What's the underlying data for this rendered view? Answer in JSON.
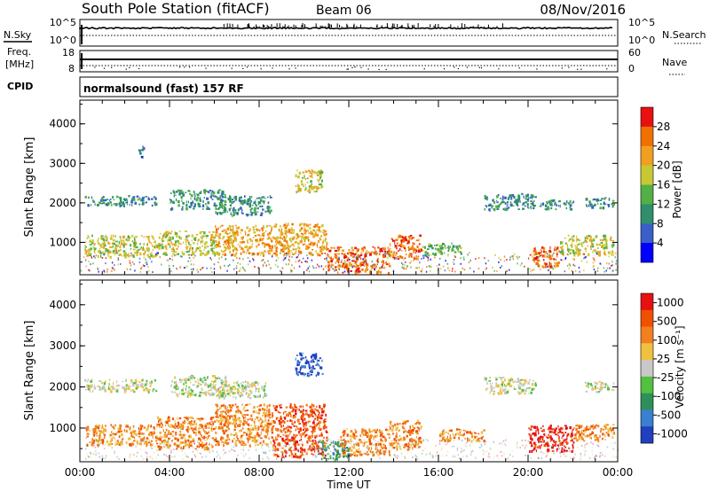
{
  "header": {
    "station_title": "South Pole Station (fitACF)",
    "beam": "Beam 06",
    "date": "08/Nov/2016"
  },
  "strips": {
    "nsky_label": "N.Sky",
    "nsearch_label": "N.Search",
    "freq_label_1": "Freq.",
    "freq_label_2": "[MHz]",
    "nave_label": "Nave",
    "cpid_label": "CPID",
    "nsky_ticks": [
      "10^5",
      "10^0"
    ],
    "nsearch_ticks": [
      "10^5",
      "10^0"
    ],
    "freq_ticks": [
      "18",
      "8"
    ],
    "nave_ticks": [
      "60",
      "0"
    ],
    "cpid_text": "normalsound (fast) 157 RF"
  },
  "chart_data": [
    {
      "type": "heatmap",
      "title": "",
      "ylabel": "Slant Range [km]",
      "xlabel": "",
      "x_range_hours": [
        0,
        24
      ],
      "ylim": [
        180,
        4600
      ],
      "y_ticks": [
        "1000",
        "2000",
        "3000",
        "4000"
      ],
      "colorbar_label": "Power [dB]",
      "colorbar_ticks": [
        "4",
        "8",
        "12",
        "16",
        "20",
        "24",
        "28"
      ],
      "colorbar_colors": [
        "#0000ff",
        "#3a5fc8",
        "#2f8f6a",
        "#52b046",
        "#c8c832",
        "#f0a020",
        "#f07000",
        "#e81010"
      ],
      "echo_regions": [
        {
          "x0": 0.2,
          "x1": 3.4,
          "y0": 1950,
          "y1": 2200,
          "level": 2
        },
        {
          "x0": 2.6,
          "x1": 2.9,
          "y0": 3150,
          "y1": 3450,
          "level": 1
        },
        {
          "x0": 4.0,
          "x1": 6.5,
          "y0": 1850,
          "y1": 2350,
          "level": 2
        },
        {
          "x0": 6.0,
          "x1": 8.5,
          "y0": 1700,
          "y1": 2200,
          "level": 2
        },
        {
          "x0": 9.6,
          "x1": 10.8,
          "y0": 2300,
          "y1": 2850,
          "level": 4
        },
        {
          "x0": 18.0,
          "x1": 20.3,
          "y0": 1850,
          "y1": 2250,
          "level": 2
        },
        {
          "x0": 20.5,
          "x1": 22.0,
          "y0": 1850,
          "y1": 2100,
          "level": 2
        },
        {
          "x0": 22.5,
          "x1": 23.8,
          "y0": 1900,
          "y1": 2150,
          "level": 2
        },
        {
          "x0": 0.2,
          "x1": 3.4,
          "y0": 650,
          "y1": 1200,
          "level": 4
        },
        {
          "x0": 3.4,
          "x1": 6.0,
          "y0": 700,
          "y1": 1300,
          "level": 4
        },
        {
          "x0": 6.0,
          "x1": 8.6,
          "y0": 700,
          "y1": 1450,
          "level": 5
        },
        {
          "x0": 8.6,
          "x1": 11.0,
          "y0": 700,
          "y1": 1500,
          "level": 5
        },
        {
          "x0": 11.0,
          "x1": 13.8,
          "y0": 250,
          "y1": 900,
          "level": 6
        },
        {
          "x0": 13.8,
          "x1": 15.2,
          "y0": 600,
          "y1": 1200,
          "level": 6
        },
        {
          "x0": 15.2,
          "x1": 17.0,
          "y0": 700,
          "y1": 1000,
          "level": 3
        },
        {
          "x0": 20.2,
          "x1": 21.4,
          "y0": 400,
          "y1": 900,
          "level": 6
        },
        {
          "x0": 21.4,
          "x1": 23.8,
          "y0": 700,
          "y1": 1200,
          "level": 4
        }
      ]
    },
    {
      "type": "heatmap",
      "title": "",
      "ylabel": "Slant Range [km]",
      "xlabel": "Time UT",
      "x_range_hours": [
        0,
        24
      ],
      "x_ticks": [
        "00:00",
        "04:00",
        "08:00",
        "12:00",
        "16:00",
        "20:00",
        "00:00"
      ],
      "ylim": [
        180,
        4600
      ],
      "y_ticks": [
        "1000",
        "2000",
        "3000",
        "4000"
      ],
      "colorbar_label": "Velocity [m s⁻¹]",
      "colorbar_ticks": [
        "1000",
        "500",
        "100",
        "25",
        "-25",
        "-100",
        "-500",
        "-1000"
      ],
      "colorbar_colors": [
        "#2040c0",
        "#3a7fd0",
        "#2f8f5a",
        "#52c040",
        "#c8c8c8",
        "#f0c040",
        "#f08020",
        "#f05000",
        "#e81010"
      ],
      "echo_regions": [
        {
          "x0": 0.2,
          "x1": 3.4,
          "y0": 1900,
          "y1": 2200,
          "level": 4
        },
        {
          "x0": 4.0,
          "x1": 6.5,
          "y0": 1800,
          "y1": 2300,
          "level": 4
        },
        {
          "x0": 6.0,
          "x1": 8.3,
          "y0": 1750,
          "y1": 2150,
          "level": 4
        },
        {
          "x0": 9.6,
          "x1": 10.8,
          "y0": 2300,
          "y1": 2850,
          "level": 0
        },
        {
          "x0": 18.0,
          "x1": 20.3,
          "y0": 1850,
          "y1": 2250,
          "level": 4
        },
        {
          "x0": 22.5,
          "x1": 23.8,
          "y0": 1900,
          "y1": 2150,
          "level": 4
        },
        {
          "x0": 0.2,
          "x1": 3.4,
          "y0": 600,
          "y1": 1100,
          "level": 6
        },
        {
          "x0": 3.4,
          "x1": 6.0,
          "y0": 500,
          "y1": 1300,
          "level": 6
        },
        {
          "x0": 6.0,
          "x1": 8.6,
          "y0": 600,
          "y1": 1600,
          "level": 6
        },
        {
          "x0": 8.6,
          "x1": 11.0,
          "y0": 300,
          "y1": 1600,
          "level": 7
        },
        {
          "x0": 10.6,
          "x1": 12.0,
          "y0": 250,
          "y1": 700,
          "level": 2
        },
        {
          "x0": 11.6,
          "x1": 13.8,
          "y0": 350,
          "y1": 1000,
          "level": 6
        },
        {
          "x0": 13.8,
          "x1": 15.2,
          "y0": 500,
          "y1": 1200,
          "level": 6
        },
        {
          "x0": 16.0,
          "x1": 18.0,
          "y0": 700,
          "y1": 1000,
          "level": 6
        },
        {
          "x0": 20.0,
          "x1": 22.0,
          "y0": 450,
          "y1": 1100,
          "level": 8
        },
        {
          "x0": 22.0,
          "x1": 23.8,
          "y0": 700,
          "y1": 1100,
          "level": 6
        }
      ]
    }
  ]
}
